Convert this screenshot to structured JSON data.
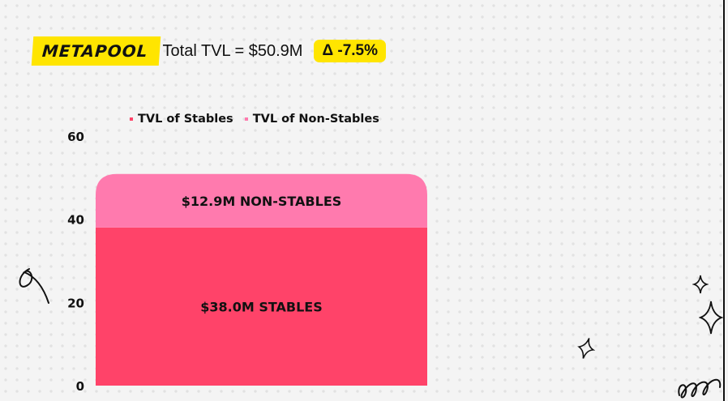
{
  "header": {
    "logo_text": "METAPOOL",
    "title": "Total TVL = $50.9M",
    "delta": "Δ -7.5%"
  },
  "colors": {
    "accent_yellow": "#ffe500",
    "stables": "#ff4369",
    "non_stables": "#ff7aae"
  },
  "chart_data": {
    "type": "bar",
    "stacked": true,
    "categories": [
      ""
    ],
    "series": [
      {
        "name": "TVL of Stables",
        "values": [
          38.0
        ],
        "label": "$38.0M STABLES",
        "color": "#ff4369"
      },
      {
        "name": "TVL of Non-Stables",
        "values": [
          12.9
        ],
        "label": "$12.9M NON-STABLES",
        "color": "#ff7aae"
      }
    ],
    "ylim": [
      0,
      60
    ],
    "yticks": [
      "0",
      "20",
      "40",
      "60"
    ],
    "legend_position": "top",
    "grid": false
  }
}
